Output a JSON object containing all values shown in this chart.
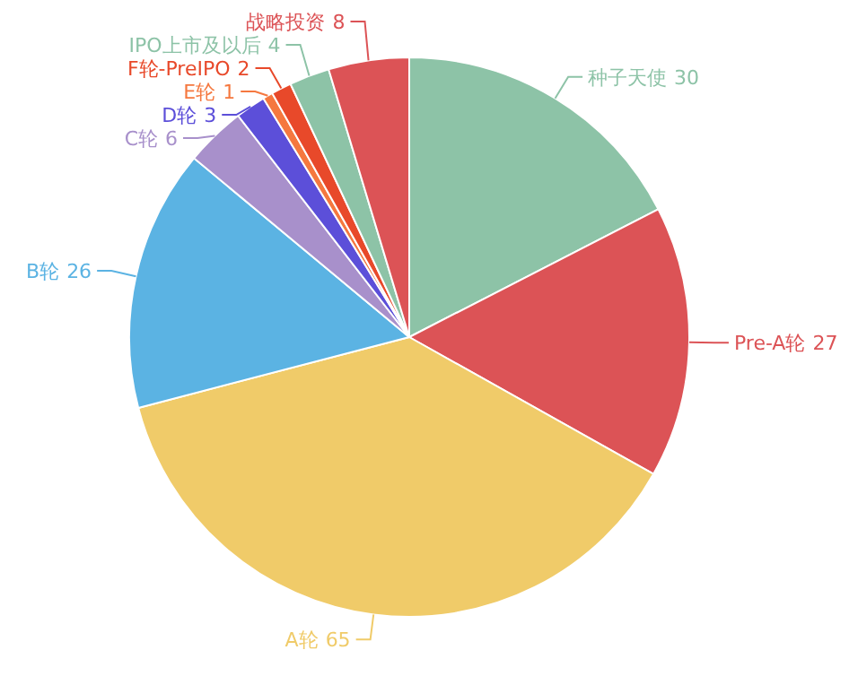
{
  "chart_data": {
    "type": "pie",
    "categories": [
      "种子天使",
      "Pre-A轮",
      "A轮",
      "B轮",
      "C轮",
      "D轮",
      "E轮",
      "F轮-PreIPO",
      "IPO上市及以后",
      "战略投资"
    ],
    "values": [
      30,
      27,
      65,
      26,
      6,
      3,
      1,
      2,
      4,
      8
    ],
    "colors": [
      "#8dc3a7",
      "#dc5356",
      "#f0cb69",
      "#5bb3e3",
      "#a890cb",
      "#5c4fd9",
      "#f5783f",
      "#e8492a",
      "#8dc3a7",
      "#dc5356"
    ],
    "data_labels": true,
    "legend": false
  }
}
